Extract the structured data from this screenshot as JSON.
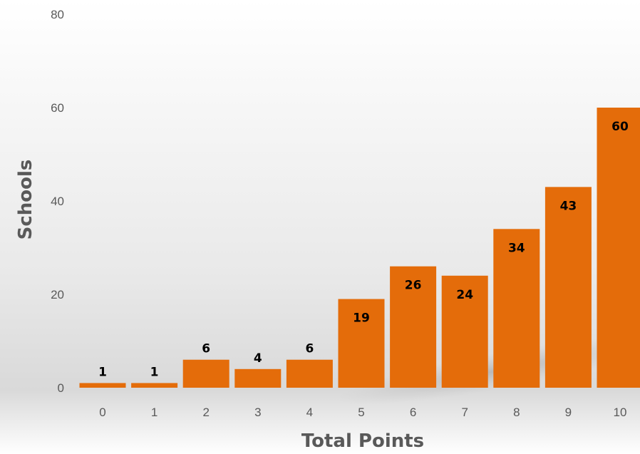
{
  "chart_data": {
    "type": "bar",
    "categories": [
      "0",
      "1",
      "2",
      "3",
      "4",
      "5",
      "6",
      "7",
      "8",
      "9",
      "10"
    ],
    "values": [
      1,
      1,
      6,
      4,
      6,
      19,
      26,
      24,
      34,
      43,
      60
    ],
    "data_labels": [
      "1",
      "1",
      "6",
      "4",
      "6",
      "19",
      "26",
      "24",
      "34",
      "43",
      "60"
    ],
    "y_ticks": [
      "0",
      "20",
      "40",
      "60",
      "80"
    ],
    "y_tick_values": [
      0,
      20,
      40,
      60,
      80
    ],
    "xlabel": "Total Points",
    "ylabel": "Schools",
    "ylim": [
      0,
      80
    ],
    "grid": false,
    "legend": false,
    "colors": {
      "bar": "#E46C0A",
      "label": "#000000",
      "axis_text": "#595959",
      "background_shade": "#E6E6E6"
    }
  }
}
